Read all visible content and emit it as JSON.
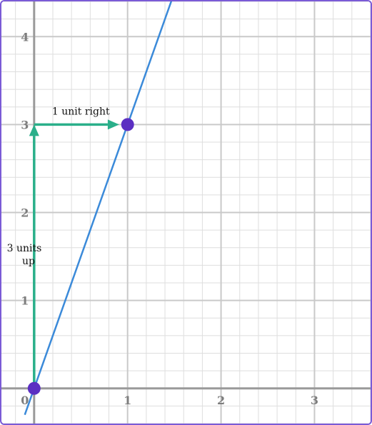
{
  "chart_data": {
    "type": "line",
    "title": "",
    "xlabel": "",
    "ylabel": "",
    "xlim": [
      -0.35,
      3.6
    ],
    "ylim": [
      -0.4,
      4.4
    ],
    "grid": true,
    "minor_grid_step": 0.2,
    "x_ticks": [
      {
        "value": 0,
        "label": "0"
      },
      {
        "value": 1,
        "label": "1"
      },
      {
        "value": 2,
        "label": "2"
      },
      {
        "value": 3,
        "label": "3"
      }
    ],
    "y_ticks": [
      {
        "value": 1,
        "label": "1"
      },
      {
        "value": 2,
        "label": "2"
      },
      {
        "value": 3,
        "label": "3"
      },
      {
        "value": 4,
        "label": "4"
      }
    ],
    "line": {
      "slope": 3,
      "intercept": 0,
      "x_range": [
        -0.1,
        1.5
      ]
    },
    "points": [
      {
        "x": 0,
        "y": 0
      },
      {
        "x": 1,
        "y": 3
      }
    ],
    "arrows": [
      {
        "name": "rise",
        "from": [
          0,
          0
        ],
        "to": [
          0,
          3
        ],
        "label_lines": [
          "3 units",
          "up"
        ]
      },
      {
        "name": "run",
        "from": [
          0,
          3
        ],
        "to": [
          1,
          3
        ],
        "label_lines": [
          "1 unit right"
        ]
      }
    ],
    "colors": {
      "frame": "#7a5bd6",
      "minor_grid": "#dedede",
      "major_grid": "#c9c9c9",
      "axis": "#9a9a9a",
      "line": "#3b8ad9",
      "arrow": "#2aaf8a",
      "point": "#5b2fc2"
    }
  }
}
